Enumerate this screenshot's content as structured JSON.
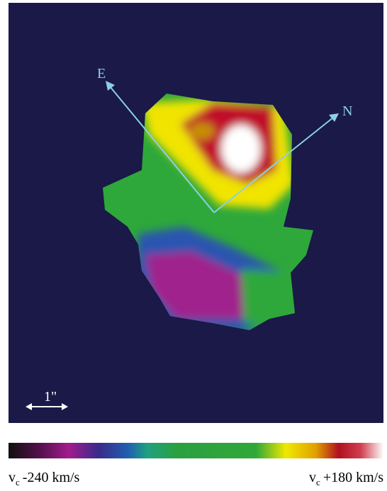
{
  "map": {
    "axes": {
      "east": "E",
      "north": "N"
    },
    "scale_bar": "1\""
  },
  "colorbar": {
    "min_label": {
      "symbol": "v",
      "subscript": "c",
      "text": "-240 km/s"
    },
    "max_label": {
      "symbol": "v",
      "subscript": "c",
      "text": "+180 km/s"
    }
  }
}
